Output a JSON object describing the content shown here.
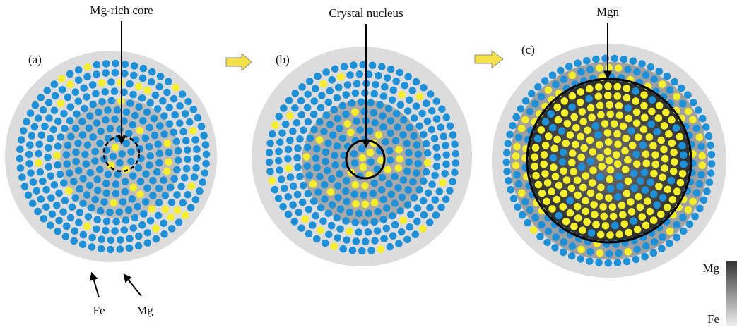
{
  "panels": [
    {
      "label": "(a)",
      "callout": "Mg-rich core"
    },
    {
      "label": "(b)",
      "callout": "Crystal nucleus"
    },
    {
      "label": "(c)",
      "callout": "Mgn"
    }
  ],
  "atom_labels": [
    "Fe",
    "Mg"
  ],
  "legend": {
    "top": "Mg",
    "bottom": "Fe"
  }
}
